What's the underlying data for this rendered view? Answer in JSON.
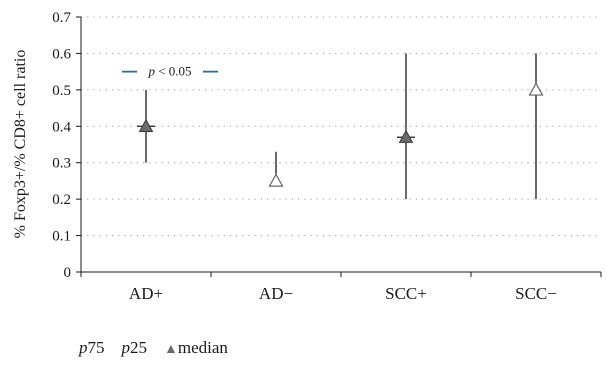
{
  "chart_data": {
    "type": "scatter",
    "ylabel": "% Foxp3+/% CD8+ cell ratio",
    "ylim": [
      0,
      0.7
    ],
    "y_ticks": [
      "0",
      "0.1",
      "0.2",
      "0.3",
      "0.4",
      "0.5",
      "0.6",
      "0.7"
    ],
    "y_tick_values": [
      0,
      0.1,
      0.2,
      0.3,
      0.4,
      0.5,
      0.6,
      0.7
    ],
    "grid": true,
    "categories": [
      "AD+",
      "AD−",
      "SCC+",
      "SCC−"
    ],
    "series": [
      {
        "name": "p75",
        "values": [
          0.5,
          0.33,
          0.6,
          0.6
        ]
      },
      {
        "name": "p25",
        "values": [
          0.3,
          0.25,
          0.2,
          0.2
        ]
      },
      {
        "name": "median",
        "values": [
          0.4,
          0.25,
          0.37,
          0.5
        ],
        "marker_fill": [
          "filled",
          "open",
          "filled",
          "open"
        ]
      }
    ],
    "annotation": {
      "text_italic": "p",
      "text_rest": " < 0.05",
      "y": 0.55,
      "from_category": "AD+",
      "to_category": "AD−",
      "color": "#2f6aa8"
    },
    "legend": {
      "placement": "bottom-left",
      "items": [
        {
          "italic": "p",
          "rest": "75"
        },
        {
          "italic": "p",
          "rest": "25"
        },
        {
          "symbol": "▲",
          "rest": "median"
        }
      ]
    }
  }
}
